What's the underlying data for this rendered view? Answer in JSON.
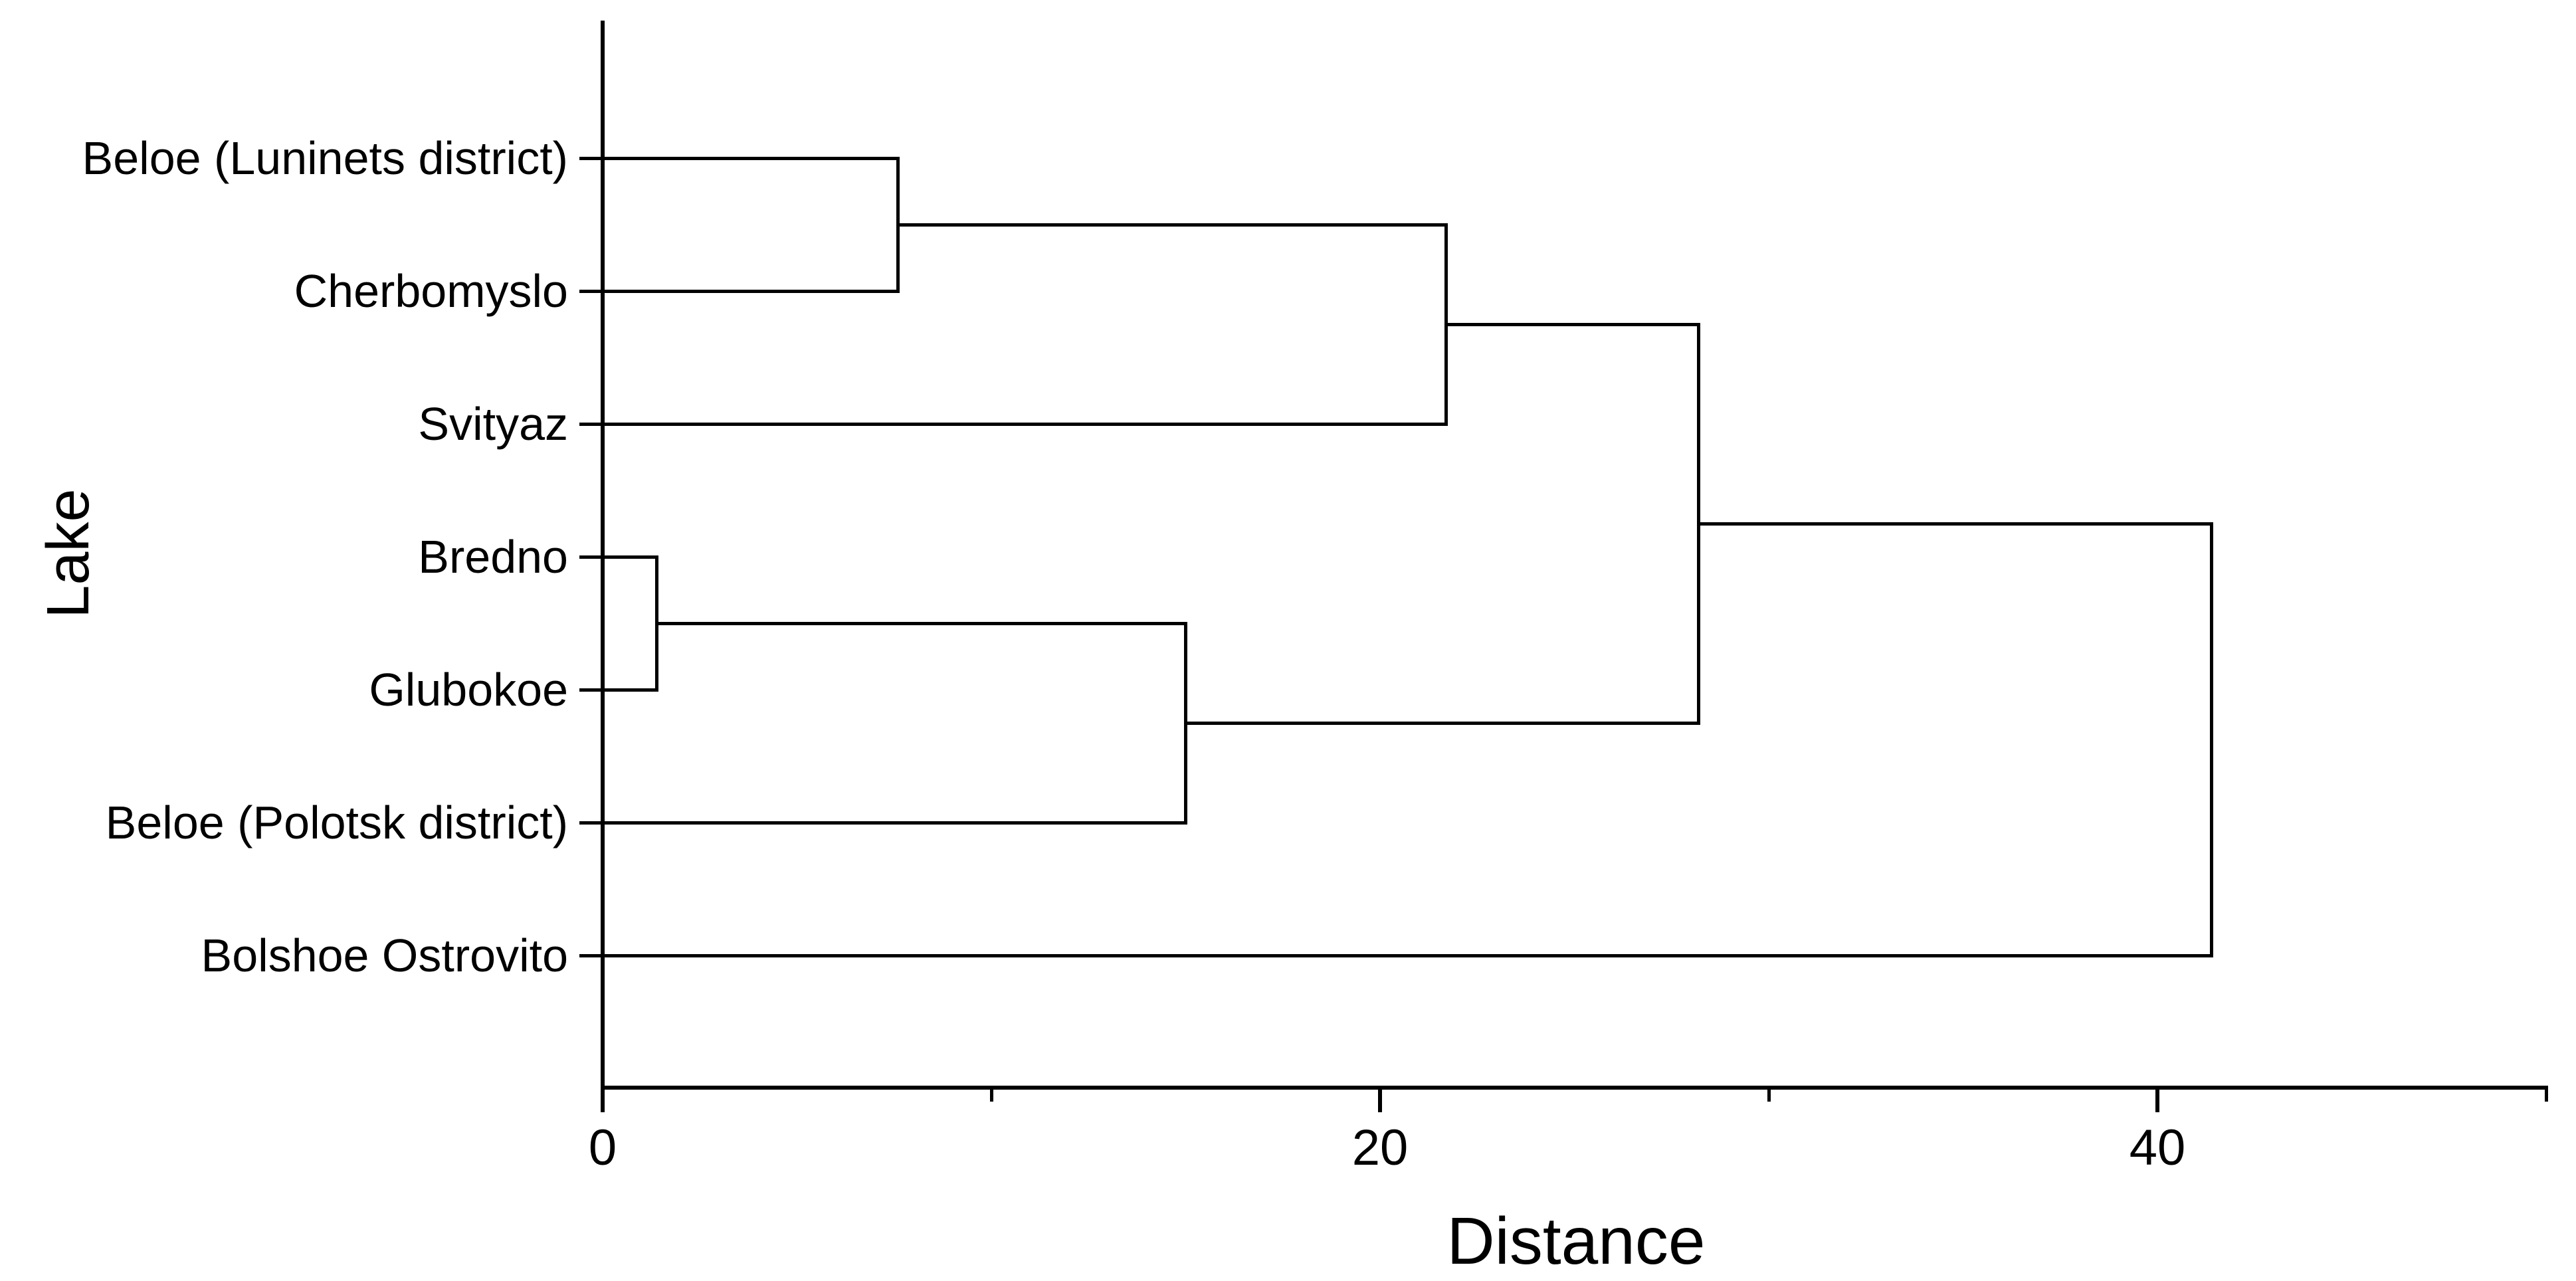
{
  "page": {
    "background_color": "#ffffff",
    "line_color": "#000000",
    "text_color": "#000000"
  },
  "chart_data": {
    "type": "dendrogram",
    "orientation": "horizontal",
    "title": "",
    "xlabel": "Distance",
    "ylabel": "Lake",
    "x_axis": {
      "min": 0,
      "max": 50,
      "major_ticks": [
        0,
        20,
        40
      ],
      "major_tick_labels": [
        "0",
        "20",
        "40"
      ],
      "minor_ticks": [
        10,
        30,
        50
      ],
      "grid": false
    },
    "leaves": [
      "Beloe (Luninets district)",
      "Cherbomyslo",
      "Svityaz",
      "Bredno",
      "Glubokoe",
      "Beloe (Polotsk district)",
      "Bolshoe Ostrovito"
    ],
    "merges": [
      {
        "id": "m1",
        "a": "leaf:0",
        "b": "leaf:1",
        "distance": 7.6
      },
      {
        "id": "m2",
        "a": "m1",
        "b": "leaf:2",
        "distance": 21.7
      },
      {
        "id": "m3",
        "a": "leaf:3",
        "b": "leaf:4",
        "distance": 1.4
      },
      {
        "id": "m4",
        "a": "m3",
        "b": "leaf:5",
        "distance": 15.0
      },
      {
        "id": "m5",
        "a": "m2",
        "b": "m4",
        "distance": 28.2
      },
      {
        "id": "m6",
        "a": "m5",
        "b": "leaf:6",
        "distance": 41.4
      }
    ],
    "legend": null,
    "annotations": []
  }
}
